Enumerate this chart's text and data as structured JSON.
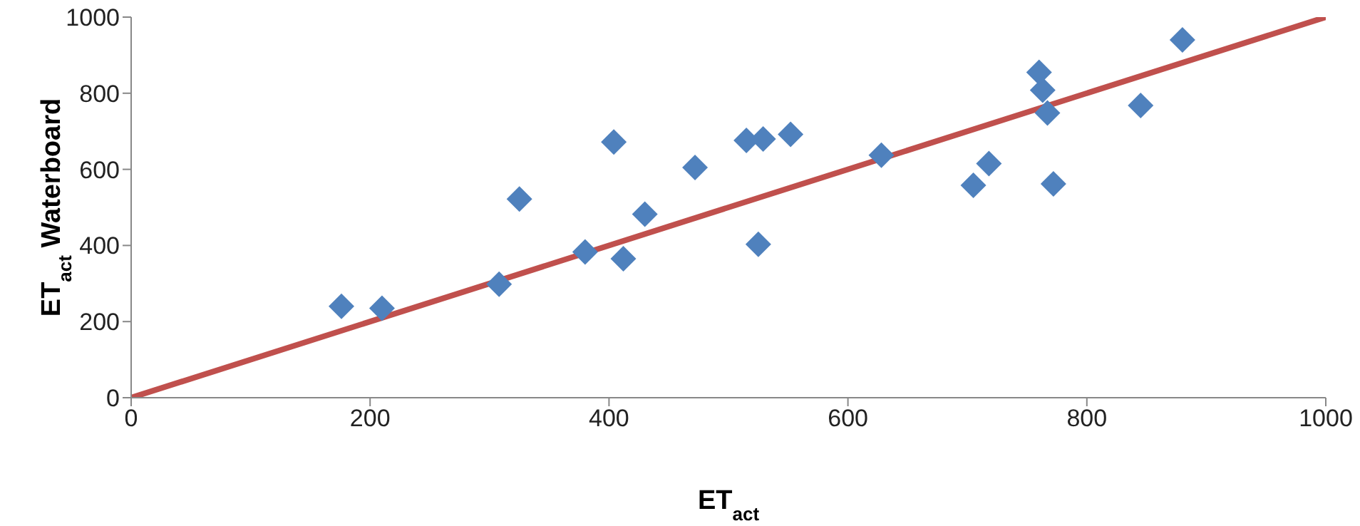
{
  "chart_data": {
    "type": "scatter",
    "xlabel": "ET$_{act}$",
    "ylabel": "ET$_{act}$ Waterboard",
    "xlim": [
      0,
      1000
    ],
    "ylim": [
      0,
      1000
    ],
    "xticks": [
      0,
      200,
      400,
      600,
      800,
      1000
    ],
    "yticks": [
      0,
      200,
      400,
      600,
      800,
      1000
    ],
    "grid": false,
    "legend": false,
    "marker": "diamond",
    "series": [
      {
        "color": "#4f81bd",
        "x": [
          176,
          210,
          308,
          325,
          380,
          404,
          412,
          430,
          472,
          515,
          529,
          525,
          552,
          628,
          705,
          718,
          760,
          763,
          767,
          772,
          845,
          880
        ],
        "values": [
          240,
          235,
          298,
          522,
          383,
          672,
          365,
          482,
          605,
          676,
          680,
          403,
          692,
          637,
          558,
          615,
          855,
          808,
          748,
          562,
          768,
          940
        ]
      },
      {
        "type": "line",
        "color": "#c0504d",
        "x": [
          0,
          1000
        ],
        "values": [
          0,
          1000
        ],
        "marker": "none"
      }
    ]
  }
}
